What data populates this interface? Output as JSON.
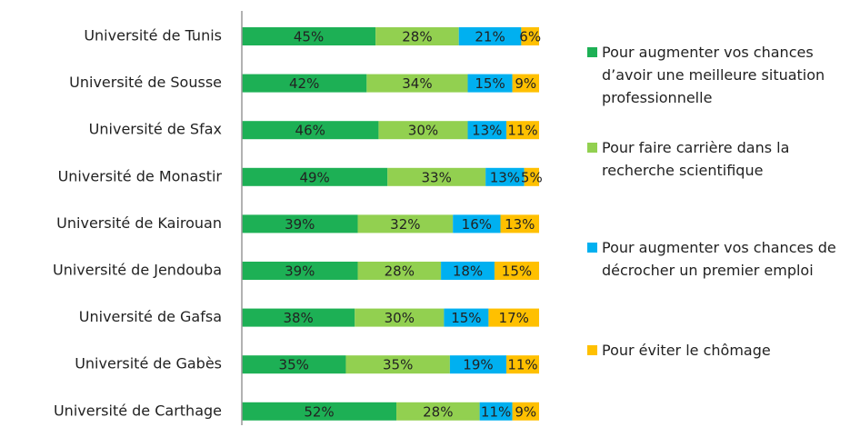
{
  "chart_data": {
    "type": "stacked-bar-horizontal",
    "categories": [
      "Université de Tunis",
      "Université de Sousse",
      "Université de Sfax",
      "Université de Monastir",
      "Université de Kairouan",
      "Université de Jendouba",
      "Université de Gafsa",
      "Université de Gabès",
      "Université de Carthage"
    ],
    "xlim": [
      0,
      100
    ],
    "legend": "right",
    "series": [
      {
        "name": "Pour augmenter vos chances d’avoir une meilleure situation professionnelle",
        "color": "#1db055",
        "values": [
          45,
          42,
          46,
          49,
          39,
          39,
          38,
          35,
          52
        ],
        "value_labels": [
          "45%",
          "42%",
          "46%",
          "49%",
          "39%",
          "39%",
          "38%",
          "35%",
          "52%"
        ]
      },
      {
        "name": "Pour faire carrière dans la recherche scientifique",
        "color": "#92d050",
        "values": [
          28,
          34,
          30,
          33,
          32,
          28,
          30,
          35,
          28
        ],
        "value_labels": [
          "28%",
          "34%",
          "30%",
          "33%",
          "32%",
          "28%",
          "30%",
          "35%",
          "28%"
        ]
      },
      {
        "name": "Pour augmenter vos chances de décrocher un premier emploi",
        "color": "#00b0f0",
        "values": [
          21,
          15,
          13,
          13,
          16,
          18,
          15,
          19,
          11
        ],
        "value_labels": [
          "21%",
          "15%",
          "13%",
          "13%",
          "16%",
          "18%",
          "15%",
          "19%",
          "11%"
        ]
      },
      {
        "name": "Pour éviter le chômage",
        "color": "#ffc000",
        "values": [
          6,
          9,
          11,
          5,
          13,
          15,
          17,
          11,
          9
        ],
        "value_labels": [
          "6%",
          "9%",
          "11%",
          "5%",
          "13%",
          "15%",
          "17%",
          "11%",
          "9%"
        ]
      }
    ]
  }
}
